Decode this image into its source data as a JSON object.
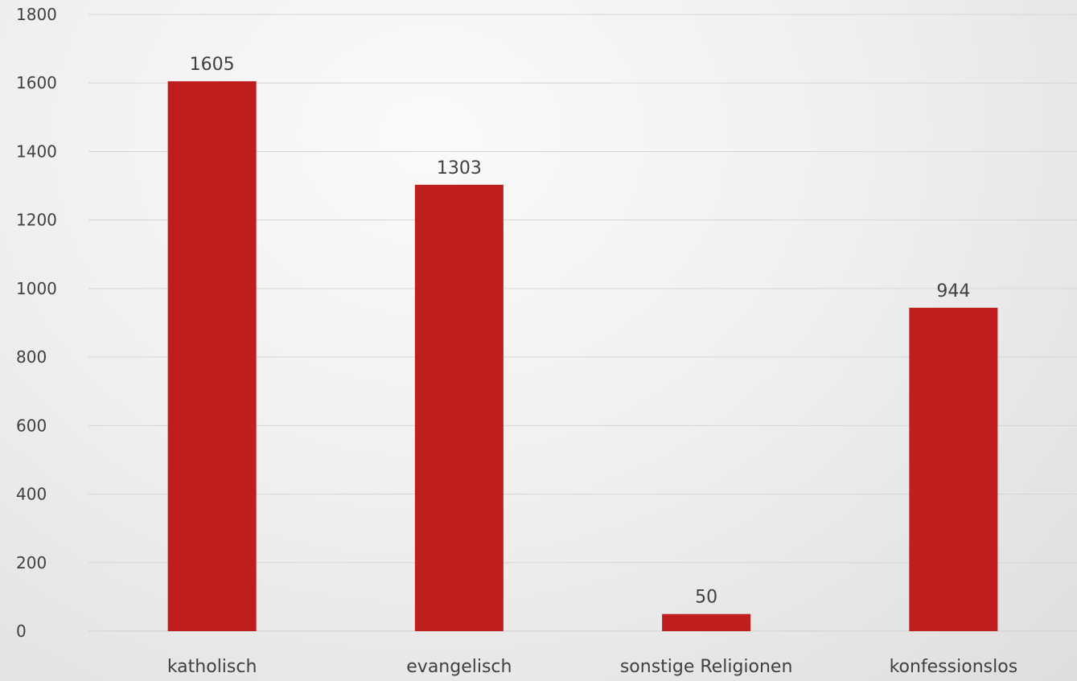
{
  "chart_data": {
    "type": "bar",
    "categories": [
      "katholisch",
      "evangelisch",
      "sonstige Religionen",
      "konfessionslos"
    ],
    "values": [
      1605,
      1303,
      50,
      944
    ],
    "data_labels": [
      "1605",
      "1303",
      "50",
      "944"
    ],
    "title": "",
    "xlabel": "",
    "ylabel": "",
    "ylim": [
      0,
      1800
    ],
    "yticks": [
      0,
      200,
      400,
      600,
      800,
      1000,
      1200,
      1400,
      1600,
      1800
    ],
    "ytick_labels": [
      "0",
      "200",
      "400",
      "600",
      "800",
      "1000",
      "1200",
      "1400",
      "1600",
      "1800"
    ],
    "grid": true,
    "legend": "none",
    "bar_color": "#be1e1e"
  }
}
